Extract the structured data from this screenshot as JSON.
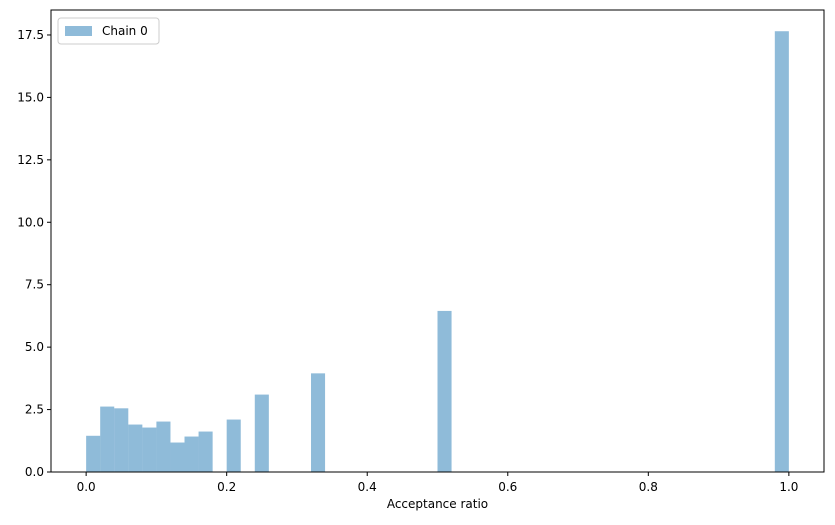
{
  "chart_data": {
    "type": "bar",
    "title": "",
    "xlabel": "Acceptance ratio",
    "ylabel": "",
    "xlim": [
      -0.05,
      1.05
    ],
    "ylim": [
      0,
      18.5
    ],
    "xticks": [
      0.0,
      0.2,
      0.4,
      0.6,
      0.8,
      1.0
    ],
    "xtick_labels": [
      "0.0",
      "0.2",
      "0.4",
      "0.6",
      "0.8",
      "1.0"
    ],
    "yticks": [
      0.0,
      2.5,
      5.0,
      7.5,
      10.0,
      12.5,
      15.0,
      17.5
    ],
    "ytick_labels": [
      "0.0",
      "2.5",
      "5.0",
      "7.5",
      "10.0",
      "12.5",
      "15.0",
      "17.5"
    ],
    "grid": false,
    "legend_position": "top-left",
    "bin_width": 0.02,
    "series": [
      {
        "name": "Chain 0",
        "color": "#1f77b4",
        "opacity": 0.5,
        "bins": [
          {
            "x0": 0.0,
            "value": 1.45
          },
          {
            "x0": 0.02,
            "value": 2.62
          },
          {
            "x0": 0.04,
            "value": 2.55
          },
          {
            "x0": 0.06,
            "value": 1.9
          },
          {
            "x0": 0.08,
            "value": 1.78
          },
          {
            "x0": 0.1,
            "value": 2.02
          },
          {
            "x0": 0.12,
            "value": 1.18
          },
          {
            "x0": 0.14,
            "value": 1.42
          },
          {
            "x0": 0.16,
            "value": 1.62
          },
          {
            "x0": 0.2,
            "value": 2.1
          },
          {
            "x0": 0.24,
            "value": 3.1
          },
          {
            "x0": 0.32,
            "value": 3.95
          },
          {
            "x0": 0.5,
            "value": 6.45
          },
          {
            "x0": 0.98,
            "value": 17.65
          }
        ]
      }
    ]
  }
}
